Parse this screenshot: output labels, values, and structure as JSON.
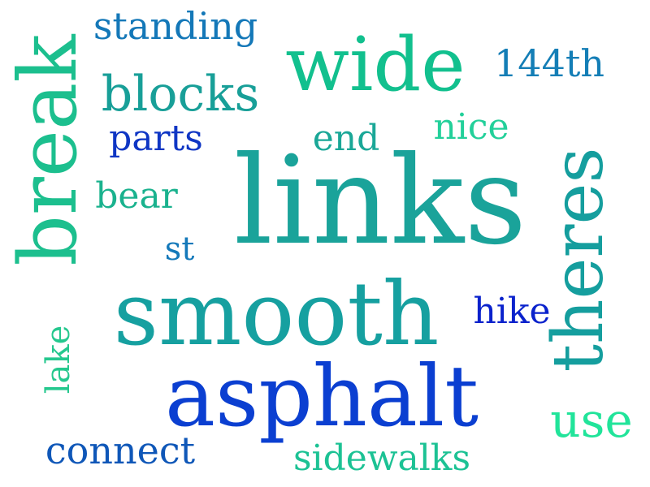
{
  "words": [
    {
      "key": "links",
      "text": "links",
      "color": "#1aa39a"
    },
    {
      "key": "smooth",
      "text": "smooth",
      "color": "#16a0a0"
    },
    {
      "key": "asphalt",
      "text": "asphalt",
      "color": "#0b3fd1"
    },
    {
      "key": "wide",
      "text": "wide",
      "color": "#12c08e"
    },
    {
      "key": "break",
      "text": "break",
      "color": "#1cbf8e"
    },
    {
      "key": "theres",
      "text": "theres",
      "color": "#159e9e"
    },
    {
      "key": "blocks",
      "text": "blocks",
      "color": "#189f98"
    },
    {
      "key": "standing",
      "text": "standing",
      "color": "#1478b8"
    },
    {
      "key": "144th",
      "text": "144th",
      "color": "#147eb6"
    },
    {
      "key": "parts",
      "text": "parts",
      "color": "#0f36c4"
    },
    {
      "key": "end",
      "text": "end",
      "color": "#1aa797"
    },
    {
      "key": "nice",
      "text": "nice",
      "color": "#23d09a"
    },
    {
      "key": "bear",
      "text": "bear",
      "color": "#1ab28e"
    },
    {
      "key": "st",
      "text": "st",
      "color": "#1479ba"
    },
    {
      "key": "hike",
      "text": "hike",
      "color": "#0a22cc"
    },
    {
      "key": "lake",
      "text": "lake",
      "color": "#25c88e"
    },
    {
      "key": "use",
      "text": "use",
      "color": "#21e49a"
    },
    {
      "key": "connect",
      "text": "connect",
      "color": "#0f57b8"
    },
    {
      "key": "sidewalks",
      "text": "sidewalks",
      "color": "#1cc294"
    }
  ]
}
